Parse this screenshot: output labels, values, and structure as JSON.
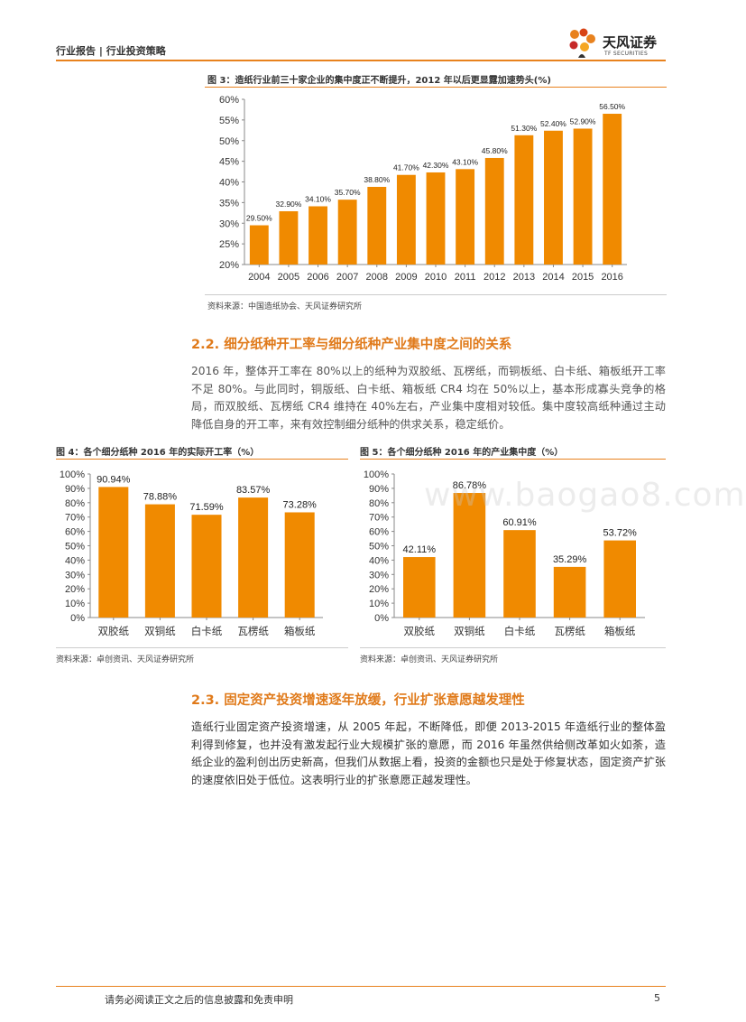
{
  "header": {
    "category": "行业报告",
    "separator": "|",
    "subcategory": "行业投资策略",
    "brand_cn": "天风证券",
    "brand_en": "TF SECURITIES"
  },
  "figure3": {
    "title": "图 3：造纸行业前三十家企业的集中度正不断提升，2012 年以后更显露加速势头(%)",
    "source": "资料来源：中国造纸协会、天风证券研究所"
  },
  "section22": {
    "title": "2.2. 细分纸种开工率与细分纸种产业集中度之间的关系",
    "body": "2016 年，整体开工率在 80%以上的纸种为双胶纸、瓦楞纸，而铜板纸、白卡纸、箱板纸开工率不足 80%。与此同时，铜版纸、白卡纸、箱板纸 CR4 均在 50%以上，基本形成寡头竞争的格局，而双胶纸、瓦楞纸 CR4 维持在 40%左右，产业集中度相对较低。集中度较高纸种通过主动降低自身的开工率，来有效控制细分纸种的供求关系，稳定纸价。"
  },
  "figure4": {
    "title": "图 4：各个细分纸种 2016 年的实际开工率（%）",
    "source": "资料来源：卓创资讯、天风证券研究所"
  },
  "figure5": {
    "title": "图 5：各个细分纸种 2016 年的产业集中度（%）",
    "source": "资料来源：卓创资讯、天风证券研究所"
  },
  "watermark": "www.baogao8.com",
  "section23": {
    "title": "2.3. 固定资产投资增速逐年放缓，行业扩张意愿越发理性",
    "body": "造纸行业固定资产投资增速，从 2005 年起，不断降低，即便 2013-2015 年造纸行业的整体盈利得到修复，也并没有激发起行业大规模扩张的意愿，而 2016 年虽然供给侧改革如火如荼，造纸企业的盈利创出历史新高，但我们从数据上看，投资的金额也只是处于修复状态，固定资产扩张的速度依旧处于低位。这表明行业的扩张意愿正越发理性。"
  },
  "footer": {
    "disclaimer": "请务必阅读正文之后的信息披露和免责申明",
    "page": "5"
  },
  "colors": {
    "accent": "#e8821e",
    "bar": "#f08a00"
  },
  "chart_data": [
    {
      "type": "bar",
      "title": "图 3：造纸行业前三十家企业的集中度正不断提升，2012 年以后更显露加速势头(%)",
      "categories": [
        "2004",
        "2005",
        "2006",
        "2007",
        "2008",
        "2009",
        "2010",
        "2011",
        "2012",
        "2013",
        "2014",
        "2015",
        "2016"
      ],
      "values": [
        29.5,
        32.9,
        34.1,
        35.7,
        38.8,
        41.7,
        42.3,
        43.1,
        45.8,
        51.3,
        52.4,
        52.9,
        56.5
      ],
      "labels": [
        "29.50%",
        "32.90%",
        "34.10%",
        "35.70%",
        "38.80%",
        "41.70%",
        "42.30%",
        "43.10%",
        "45.80%",
        "51.30%",
        "52.40%",
        "52.90%",
        "56.50%"
      ],
      "yticks": [
        "20%",
        "25%",
        "30%",
        "35%",
        "40%",
        "45%",
        "50%",
        "55%",
        "60%"
      ],
      "ylim": [
        20,
        60
      ]
    },
    {
      "type": "bar",
      "title": "图 4：各个细分纸种 2016 年的实际开工率（%）",
      "categories": [
        "双胶纸",
        "双铜纸",
        "白卡纸",
        "瓦楞纸",
        "箱板纸"
      ],
      "values": [
        90.94,
        78.88,
        71.59,
        83.57,
        73.28
      ],
      "labels": [
        "90.94%",
        "78.88%",
        "71.59%",
        "83.57%",
        "73.28%"
      ],
      "yticks": [
        "0%",
        "10%",
        "20%",
        "30%",
        "40%",
        "50%",
        "60%",
        "70%",
        "80%",
        "90%",
        "100%"
      ],
      "ylim": [
        0,
        100
      ]
    },
    {
      "type": "bar",
      "title": "图 5：各个细分纸种 2016 年的产业集中度（%）",
      "categories": [
        "双胶纸",
        "双铜纸",
        "白卡纸",
        "瓦楞纸",
        "箱板纸"
      ],
      "values": [
        42.11,
        86.78,
        60.91,
        35.29,
        53.72
      ],
      "labels": [
        "42.11%",
        "86.78%",
        "60.91%",
        "35.29%",
        "53.72%"
      ],
      "yticks": [
        "0%",
        "10%",
        "20%",
        "30%",
        "40%",
        "50%",
        "60%",
        "70%",
        "80%",
        "90%",
        "100%"
      ],
      "ylim": [
        0,
        100
      ]
    }
  ]
}
